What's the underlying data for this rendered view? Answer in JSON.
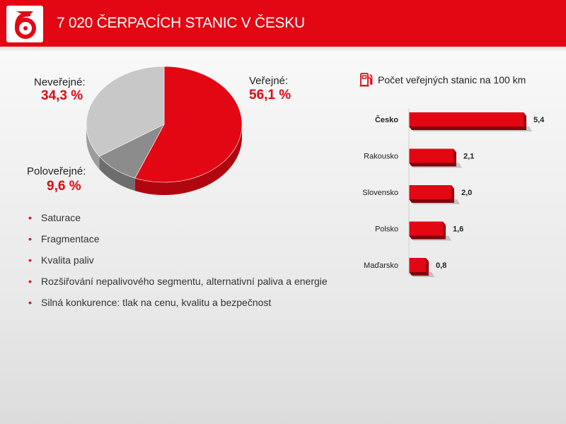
{
  "header": {
    "title": "7 020 ČERPACÍCH STANIC V ČESKU",
    "logo_icon": "benzina-logo-icon",
    "brand_color": "#e30613"
  },
  "chart_data": [
    {
      "type": "pie",
      "slices": [
        {
          "label": "Veřejné:",
          "value_text": "56,1 %",
          "value": 56.1,
          "color": "#e30613"
        },
        {
          "label": "Poloveřejné:",
          "value_text": "9,6 %",
          "value": 9.6,
          "color": "#8c8c8c"
        },
        {
          "label": "Neveřejné:",
          "value_text": "34,3 %",
          "value": 34.3,
          "color": "#c8c8c8"
        }
      ],
      "style": "3d"
    },
    {
      "type": "bar",
      "orientation": "horizontal",
      "title": "Počet veřejných stanic na 100 km",
      "title_icon": "fuel-pump-icon",
      "categories": [
        "Česko",
        "Rakousko",
        "Slovensko",
        "Polsko",
        "Maďarsko"
      ],
      "values": [
        5.4,
        2.1,
        2.0,
        1.6,
        0.8
      ],
      "value_labels": [
        "5,4",
        "2,1",
        "2,0",
        "1,6",
        "0,8"
      ],
      "highlight": "Česko",
      "color": "#e30613"
    }
  ],
  "bullets": [
    "Saturace",
    "Fragmentace",
    "Kvalita paliv",
    "Rozšiřování nepalivového segmentu, alternativní paliva a energie",
    "Silná konkurence: tlak na cenu, kvalitu a bezpečnost"
  ]
}
